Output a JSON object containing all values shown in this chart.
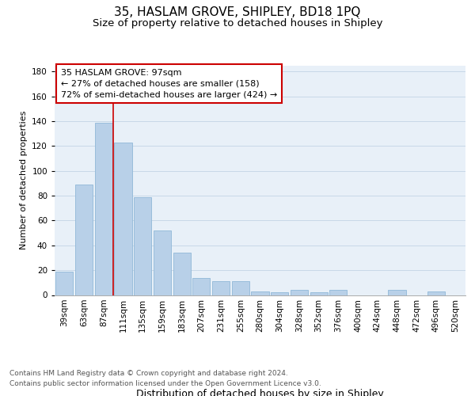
{
  "title": "35, HASLAM GROVE, SHIPLEY, BD18 1PQ",
  "subtitle": "Size of property relative to detached houses in Shipley",
  "xlabel": "Distribution of detached houses by size in Shipley",
  "ylabel": "Number of detached properties",
  "categories": [
    "39sqm",
    "63sqm",
    "87sqm",
    "111sqm",
    "135sqm",
    "159sqm",
    "183sqm",
    "207sqm",
    "231sqm",
    "255sqm",
    "280sqm",
    "304sqm",
    "328sqm",
    "352sqm",
    "376sqm",
    "400sqm",
    "424sqm",
    "448sqm",
    "472sqm",
    "496sqm",
    "520sqm"
  ],
  "values": [
    19,
    89,
    139,
    123,
    79,
    52,
    34,
    14,
    11,
    11,
    3,
    2,
    4,
    2,
    4,
    0,
    0,
    4,
    0,
    3,
    0
  ],
  "bar_color": "#b8d0e8",
  "bar_edge_color": "#90b8d8",
  "vline_x": 2.5,
  "vline_color": "#cc0000",
  "annotation_line1": "35 HASLAM GROVE: 97sqm",
  "annotation_line2": "← 27% of detached houses are smaller (158)",
  "annotation_line3": "72% of semi-detached houses are larger (424) →",
  "annotation_box_color": "#ffffff",
  "annotation_box_edge": "#cc0000",
  "ylim": [
    0,
    185
  ],
  "yticks": [
    0,
    20,
    40,
    60,
    80,
    100,
    120,
    140,
    160,
    180
  ],
  "grid_color": "#c8d8e8",
  "background_color": "#e8f0f8",
  "footer_line1": "Contains HM Land Registry data © Crown copyright and database right 2024.",
  "footer_line2": "Contains public sector information licensed under the Open Government Licence v3.0.",
  "title_fontsize": 11,
  "subtitle_fontsize": 9.5,
  "xlabel_fontsize": 9,
  "ylabel_fontsize": 8,
  "tick_fontsize": 7.5,
  "annotation_fontsize": 8,
  "footer_fontsize": 6.5
}
